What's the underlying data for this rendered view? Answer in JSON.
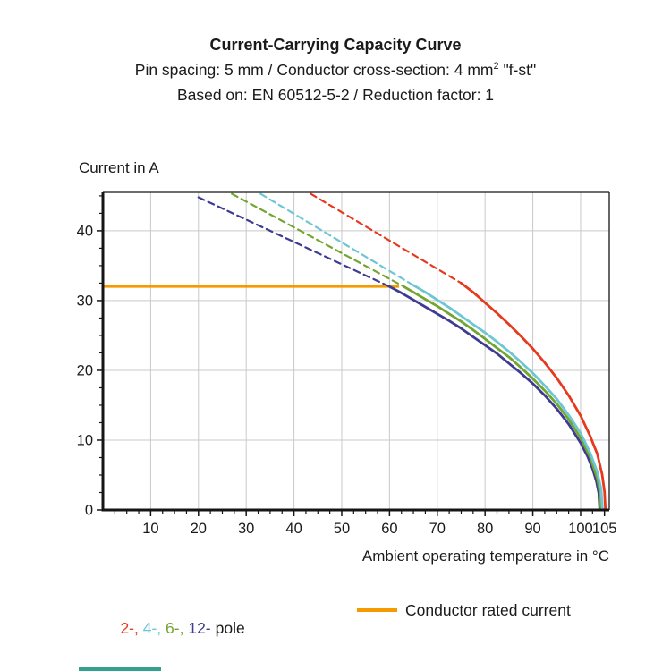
{
  "header": {
    "title": "Current-Carrying Capacity Curve",
    "subtitle_main": "Pin spacing: 5 mm / Conductor cross-section: 4 mm",
    "subtitle_sup": "2",
    "subtitle_rest": " \"f-st\"",
    "basis": "Based on: EN 60512-5-2 / Reduction factor: 1"
  },
  "chart_data": {
    "type": "line",
    "title": "Current-Carrying Capacity Curve",
    "x_axis": {
      "title": "Ambient operating temperature in °C",
      "min": 0,
      "max": 106,
      "major_ticks": [
        10,
        20,
        30,
        40,
        50,
        60,
        70,
        80,
        90,
        100,
        105
      ],
      "grid_ticks": [
        10,
        20,
        30,
        40,
        50,
        60,
        70,
        80,
        90,
        100
      ],
      "minor_step": 2.5
    },
    "y_axis": {
      "title": "Current in A",
      "min": 0,
      "max": 45.5,
      "major_ticks": [
        0,
        10,
        20,
        30,
        40
      ],
      "grid_ticks": [
        10,
        20,
        30,
        40
      ],
      "minor_step": 2.5
    },
    "rated_line": {
      "label": "Conductor rated current",
      "color": "#f59b00",
      "current_a": 32,
      "x_start": 0,
      "x_end": 62
    },
    "series": [
      {
        "name": "2-pole",
        "color": "#e6391e",
        "dashed": [
          [
            43.5,
            45.3
          ],
          [
            75,
            32.5
          ]
        ],
        "solid": [
          [
            75,
            32.5
          ],
          [
            77.5,
            31.2
          ],
          [
            80,
            29.7
          ],
          [
            82.5,
            28.2
          ],
          [
            85,
            26.6
          ],
          [
            87.5,
            24.9
          ],
          [
            90,
            23.1
          ],
          [
            92.5,
            21.1
          ],
          [
            95,
            18.9
          ],
          [
            97.5,
            16.4
          ],
          [
            100,
            13.5
          ],
          [
            102,
            10.6
          ],
          [
            103.5,
            8.0
          ],
          [
            104.5,
            5.1
          ],
          [
            105,
            2.6
          ],
          [
            105.2,
            0
          ]
        ]
      },
      {
        "name": "4-pole",
        "color": "#6ec6d4",
        "dashed": [
          [
            33,
            45.3
          ],
          [
            65,
            32.2
          ]
        ],
        "solid": [
          [
            65,
            32.2
          ],
          [
            67.5,
            31.2
          ],
          [
            70,
            30.1
          ],
          [
            72.5,
            29.0
          ],
          [
            75,
            27.8
          ],
          [
            77.5,
            26.6
          ],
          [
            80,
            25.4
          ],
          [
            82.5,
            24.1
          ],
          [
            85,
            22.7
          ],
          [
            87.5,
            21.2
          ],
          [
            90,
            19.6
          ],
          [
            92.5,
            17.8
          ],
          [
            95,
            15.9
          ],
          [
            97.5,
            13.6
          ],
          [
            100,
            11.0
          ],
          [
            102,
            8.2
          ],
          [
            103.5,
            5.4
          ],
          [
            104.3,
            3.0
          ],
          [
            104.6,
            0
          ]
        ]
      },
      {
        "name": "6-pole",
        "color": "#72a630",
        "dashed": [
          [
            27,
            45.3
          ],
          [
            63,
            32
          ]
        ],
        "solid": [
          [
            63,
            32
          ],
          [
            65,
            31.2
          ],
          [
            67.5,
            30.2
          ],
          [
            70,
            29.2
          ],
          [
            72.5,
            28.1
          ],
          [
            75,
            27.0
          ],
          [
            77.5,
            25.8
          ],
          [
            80,
            24.5
          ],
          [
            82.5,
            23.2
          ],
          [
            85,
            21.9
          ],
          [
            87.5,
            20.4
          ],
          [
            90,
            18.8
          ],
          [
            92.5,
            17.1
          ],
          [
            95,
            15.2
          ],
          [
            97.5,
            13.0
          ],
          [
            100,
            10.3
          ],
          [
            102,
            7.6
          ],
          [
            103.5,
            4.5
          ],
          [
            104,
            2.7
          ],
          [
            104.3,
            0
          ]
        ]
      },
      {
        "name": "12-pole",
        "color": "#3e3b93",
        "dashed": [
          [
            20,
            44.8
          ],
          [
            60,
            32
          ]
        ],
        "solid": [
          [
            60,
            32
          ],
          [
            62.5,
            31.1
          ],
          [
            65,
            30.1
          ],
          [
            67.5,
            29.1
          ],
          [
            70,
            28.1
          ],
          [
            72.5,
            27.1
          ],
          [
            75,
            26.0
          ],
          [
            77.5,
            24.8
          ],
          [
            80,
            23.6
          ],
          [
            82.5,
            22.4
          ],
          [
            85,
            21.0
          ],
          [
            87.5,
            19.6
          ],
          [
            90,
            18.1
          ],
          [
            92.5,
            16.4
          ],
          [
            95,
            14.5
          ],
          [
            97.5,
            12.3
          ],
          [
            100,
            9.6
          ],
          [
            101.5,
            7.6
          ],
          [
            102.5,
            5.9
          ],
          [
            103.3,
            4.1
          ],
          [
            103.8,
            2.4
          ],
          [
            104,
            0
          ]
        ]
      }
    ],
    "legend": {
      "poles": [
        {
          "label": "2-",
          "color": "#e6391e"
        },
        {
          "label": "4-",
          "color": "#6ec6d4"
        },
        {
          "label": "6-",
          "color": "#72a630"
        },
        {
          "label": "12-",
          "color": "#3e3b93"
        }
      ],
      "separator": ", ",
      "suffix": "pole",
      "rated_label": "Conductor rated current"
    },
    "axis_color": "#151515",
    "grid_color": "#c9c9c9",
    "text_color": "#1a1a1a"
  },
  "decor": {
    "bottom_bar_color": "#35a08f"
  }
}
